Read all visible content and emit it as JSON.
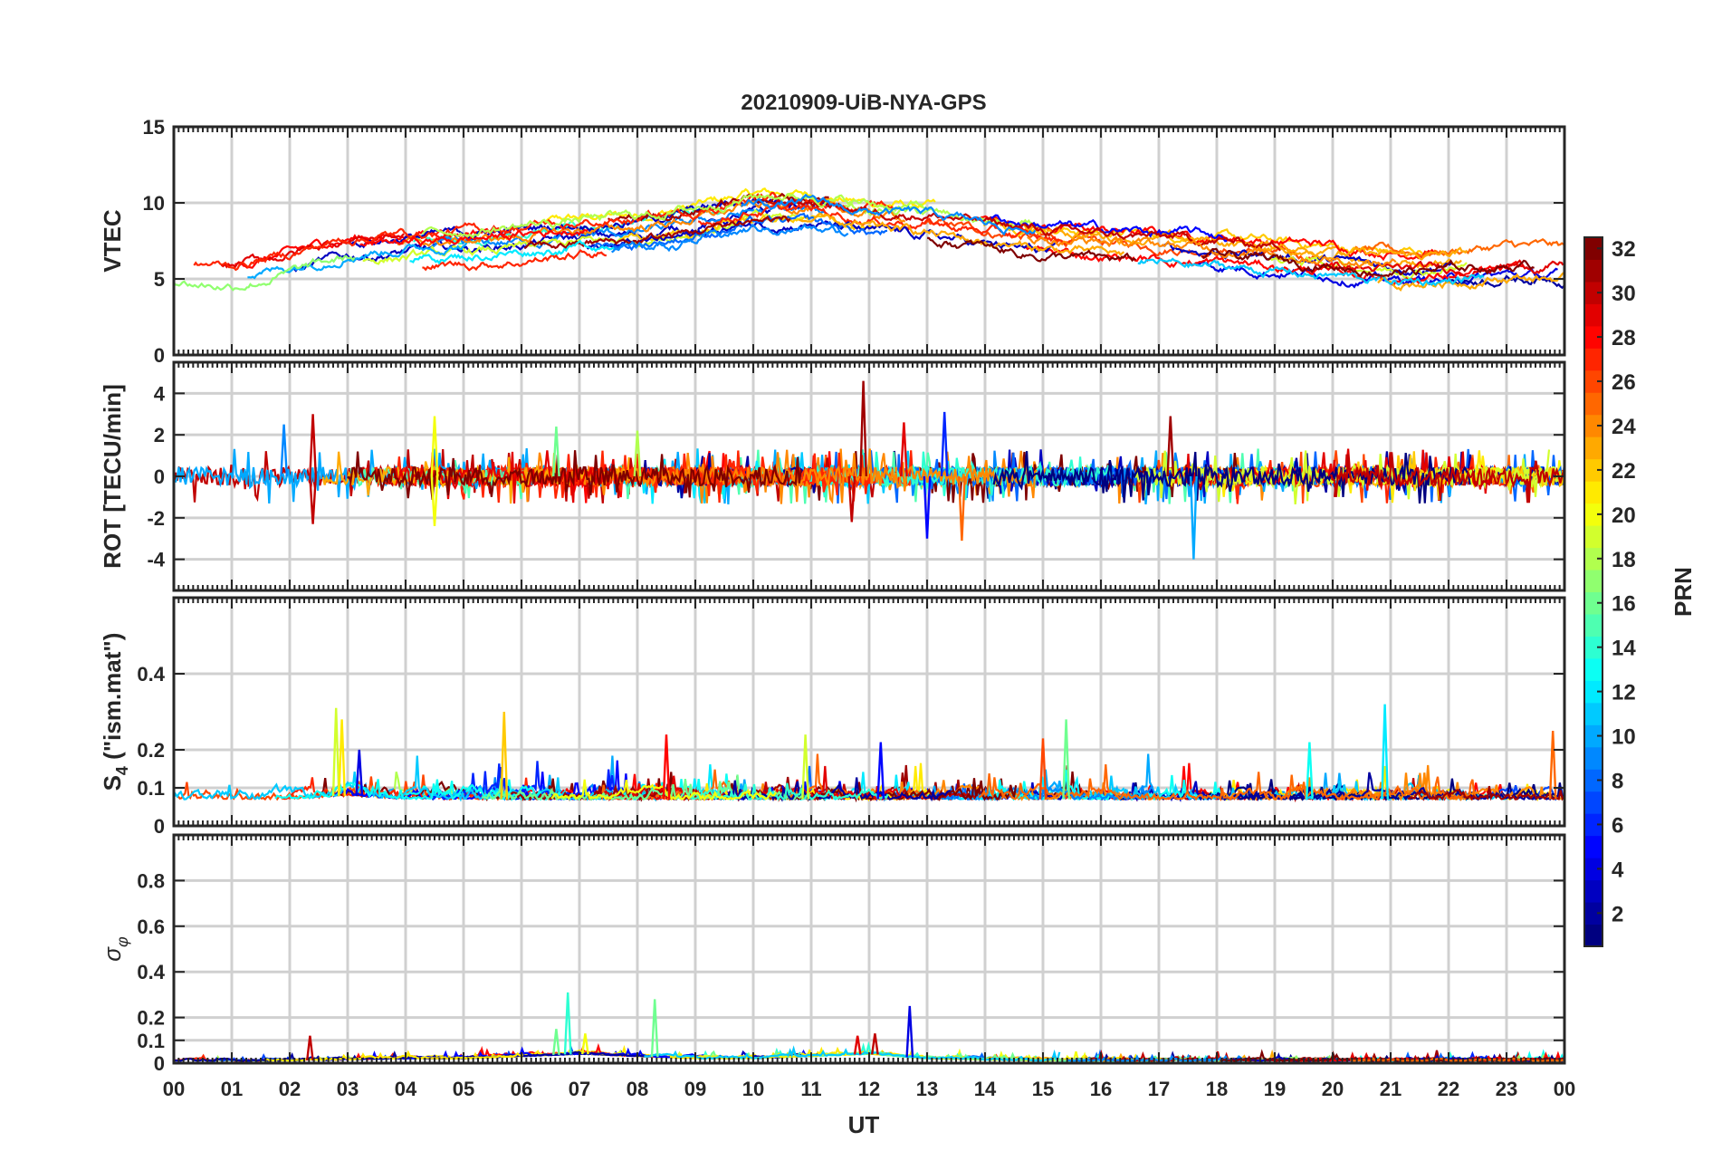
{
  "chart_data": {
    "title": "20210909-UiB-NYA-GPS",
    "type": "line",
    "xlabel": "UT",
    "x_tick_labels": [
      "00",
      "01",
      "02",
      "03",
      "04",
      "05",
      "06",
      "07",
      "08",
      "09",
      "10",
      "11",
      "12",
      "13",
      "14",
      "15",
      "16",
      "17",
      "18",
      "19",
      "20",
      "21",
      "22",
      "23",
      "00"
    ],
    "xlim": [
      0,
      24
    ],
    "series_note": "One trace per GPS satellite (PRN 1-32), colored by PRN",
    "colorbar": {
      "label": "PRN",
      "range": [
        1,
        32
      ],
      "tick_values": [
        2,
        4,
        6,
        8,
        10,
        12,
        14,
        16,
        18,
        20,
        22,
        24,
        26,
        28,
        30,
        32
      ],
      "tick_labels": [
        "2",
        "4",
        "6",
        "8",
        "10",
        "12",
        "14",
        "16",
        "18",
        "20",
        "22",
        "24",
        "26",
        "28",
        "30",
        "32"
      ],
      "colormap": "jet"
    },
    "panels": [
      {
        "id": "vtec",
        "ylabel": "VTEC",
        "ylim": [
          0,
          15
        ],
        "yticks": [
          0,
          5,
          10,
          15
        ],
        "ytick_labels": [
          "0",
          "5",
          "10",
          "15"
        ],
        "baseline": [
          5.0,
          4.8,
          5.6,
          6.6,
          6.9,
          7.1,
          7.4,
          7.8,
          8.0,
          8.6,
          9.4,
          9.4,
          8.8,
          8.6,
          8.0,
          7.5,
          7.2,
          7.0,
          6.8,
          6.5,
          6.2,
          5.8,
          5.9,
          6.2,
          6.1
        ],
        "spread": 1.2,
        "noise": 0.35
      },
      {
        "id": "rot",
        "ylabel": "ROT [TECU/min]",
        "ylim": [
          -5.5,
          5.5
        ],
        "yticks": [
          -4,
          -2,
          0,
          2,
          4
        ],
        "ytick_labels": [
          "-4",
          "-2",
          "0",
          "2",
          "4"
        ],
        "baseline": [
          0,
          0,
          0,
          0,
          0,
          0,
          0,
          0,
          0,
          0,
          0,
          0,
          0,
          0,
          0,
          0,
          0,
          0,
          0,
          0,
          0,
          0,
          0,
          0,
          0
        ],
        "spread": 0.0,
        "noise": 0.45,
        "spikes": [
          [
            2.4,
            3.0,
            30
          ],
          [
            2.4,
            -2.3,
            30
          ],
          [
            1.9,
            2.5,
            9
          ],
          [
            4.5,
            2.9,
            20
          ],
          [
            4.5,
            -2.4,
            20
          ],
          [
            6.6,
            2.4,
            16
          ],
          [
            8.0,
            2.2,
            18
          ],
          [
            11.9,
            4.6,
            31
          ],
          [
            11.7,
            -2.2,
            30
          ],
          [
            13.3,
            3.1,
            6
          ],
          [
            13.6,
            -3.1,
            25
          ],
          [
            13.0,
            -3.0,
            5
          ],
          [
            17.2,
            2.9,
            31
          ],
          [
            17.6,
            -4.0,
            10
          ],
          [
            12.6,
            2.6,
            29
          ]
        ]
      },
      {
        "id": "s4",
        "ylabel": "S4 (\"ism.mat\")",
        "ylabel_main": "S",
        "ylabel_sub": "4",
        "ylabel_rest": " (\"ism.mat\")",
        "ylim": [
          0,
          0.6
        ],
        "yticks": [
          0,
          0.1,
          0.2,
          0.4
        ],
        "ytick_labels": [
          "0",
          "0.1",
          "0.2",
          "0.4"
        ],
        "baseline": [
          0.07,
          0.07,
          0.07,
          0.08,
          0.07,
          0.07,
          0.07,
          0.07,
          0.07,
          0.07,
          0.07,
          0.07,
          0.07,
          0.07,
          0.07,
          0.07,
          0.07,
          0.07,
          0.07,
          0.07,
          0.07,
          0.07,
          0.07,
          0.07,
          0.07
        ],
        "spread": 0.02,
        "noise": 0.02,
        "spikes": [
          [
            2.8,
            0.31,
            19
          ],
          [
            2.9,
            0.28,
            21
          ],
          [
            5.7,
            0.3,
            22
          ],
          [
            8.5,
            0.24,
            28
          ],
          [
            10.9,
            0.24,
            19
          ],
          [
            12.2,
            0.22,
            5
          ],
          [
            15.0,
            0.23,
            26
          ],
          [
            15.4,
            0.28,
            16
          ],
          [
            19.6,
            0.22,
            13
          ],
          [
            20.9,
            0.32,
            12
          ],
          [
            23.8,
            0.25,
            25
          ],
          [
            3.2,
            0.2,
            4
          ]
        ]
      },
      {
        "id": "sigphi",
        "ylabel": "σφ",
        "ylabel_main": "σ",
        "ylabel_sub": "φ",
        "ylim": [
          0,
          1.0
        ],
        "yticks": [
          0,
          0.1,
          0.2,
          0.4,
          0.6,
          0.8
        ],
        "ytick_labels": [
          "0",
          "0.1",
          "0.2",
          "0.4",
          "0.6",
          "0.8"
        ],
        "baseline": [
          0.01,
          0.01,
          0.01,
          0.015,
          0.02,
          0.02,
          0.03,
          0.04,
          0.03,
          0.02,
          0.02,
          0.03,
          0.04,
          0.02,
          0.015,
          0.01,
          0.01,
          0.01,
          0.01,
          0.01,
          0.01,
          0.01,
          0.01,
          0.01,
          0.01
        ],
        "spread": 0.005,
        "noise": 0.008,
        "spikes": [
          [
            6.8,
            0.31,
            14
          ],
          [
            8.3,
            0.28,
            16
          ],
          [
            12.7,
            0.25,
            4
          ],
          [
            2.35,
            0.12,
            30
          ],
          [
            6.6,
            0.15,
            16
          ],
          [
            7.1,
            0.13,
            20
          ],
          [
            11.8,
            0.12,
            29
          ],
          [
            12.1,
            0.13,
            30
          ]
        ]
      }
    ]
  }
}
